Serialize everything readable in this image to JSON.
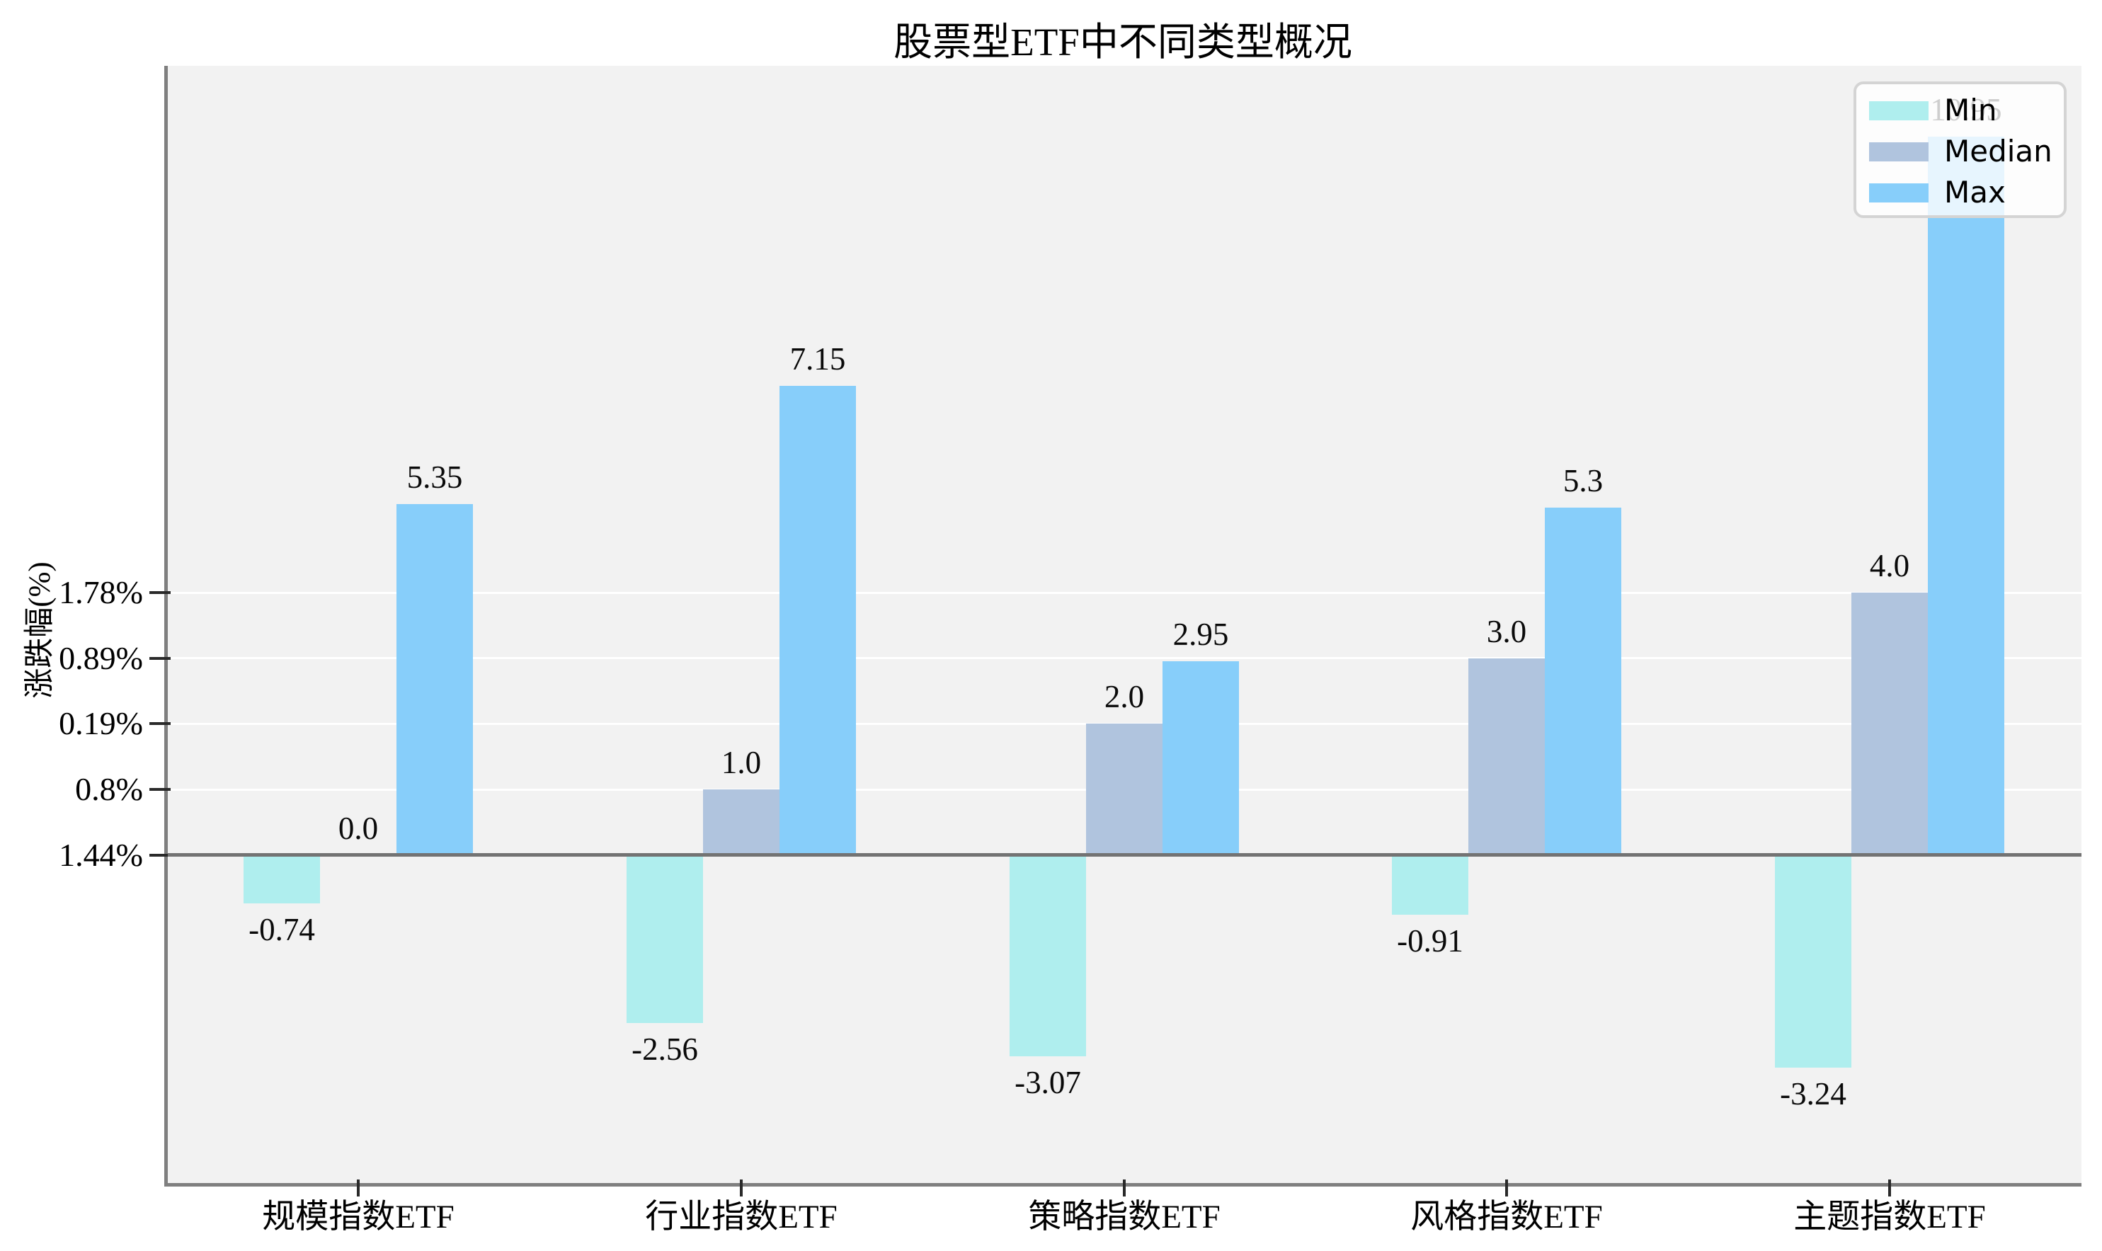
{
  "chart_data": {
    "type": "bar",
    "title": "股票型ETF中不同类型概况",
    "xlabel": "",
    "ylabel": "涨跌幅(%)",
    "categories": [
      "规模指数ETF",
      "行业指数ETF",
      "策略指数ETF",
      "风格指数ETF",
      "主题指数ETF"
    ],
    "series": [
      {
        "name": "Min",
        "color": "#AFEEEE",
        "values": [
          -0.74,
          -2.56,
          -3.07,
          -0.91,
          -3.24
        ],
        "labels": [
          "-0.74",
          "-2.56",
          "-3.07",
          "-0.91",
          "-3.24"
        ]
      },
      {
        "name": "Median",
        "color": "#B0C4DE",
        "values": [
          0.0,
          1.0,
          2.0,
          3.0,
          4.0
        ],
        "labels": [
          "0.0",
          "1.0",
          "2.0",
          "3.0",
          "4.0"
        ]
      },
      {
        "name": "Max",
        "color": "#87CEFA",
        "values": [
          5.35,
          7.15,
          2.95,
          5.3,
          10.95
        ],
        "labels": [
          "5.35",
          "7.15",
          "2.95",
          "5.3",
          "10.95"
        ]
      }
    ],
    "yticks": [
      {
        "value": 0,
        "label": "1.44%"
      },
      {
        "value": 1,
        "label": "0.8%"
      },
      {
        "value": 2,
        "label": "0.19%"
      },
      {
        "value": 3,
        "label": "0.89%"
      },
      {
        "value": 4,
        "label": "1.78%"
      }
    ],
    "ylim": [
      -5.0,
      12.03
    ],
    "grid": "horizontal-white-lines-at-yticks",
    "legend": {
      "position": "upper-right",
      "entries": [
        "Min",
        "Median",
        "Max"
      ]
    },
    "style": {
      "plot_bg": "#f2f2f2",
      "grid_color": "#ffffff",
      "spine_color": "#7f7f7f",
      "zero_line_color": "#737373",
      "tick_color": "#2a2a2a",
      "text_color": "#000000"
    }
  }
}
